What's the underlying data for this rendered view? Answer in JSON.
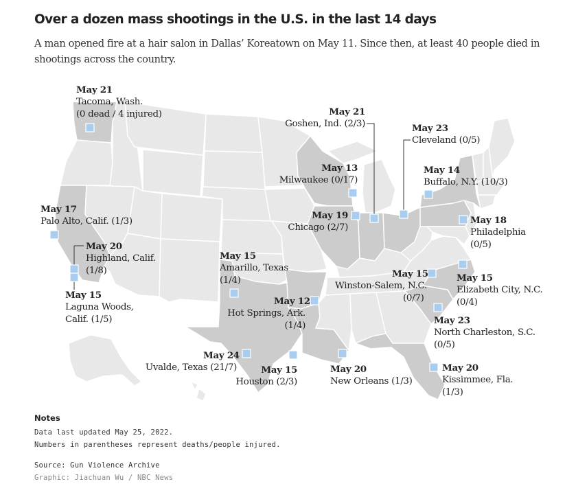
{
  "title": "Over a dozen mass shootings in the U.S. in the last 14 days",
  "subtitle": "A man opened fire at a hair salon in Dallas’ Koreatown on May 11. Since then, at least 40 people died in shootings across the country.",
  "colors": {
    "land_default": "#e8e8e8",
    "land_affected": "#cccccc",
    "state_border": "#ffffff",
    "marker": "#a9cdee",
    "marker_border": "#ffffff",
    "leader": "#333333"
  },
  "affected_states": [
    "WA",
    "CA",
    "TX",
    "AR",
    "LA",
    "FL",
    "SC",
    "NC",
    "PA",
    "NY",
    "OH",
    "IN",
    "IL",
    "WI"
  ],
  "shootings": [
    {
      "id": "tacoma",
      "date": "May 21",
      "place": "Tacoma, Wash.",
      "counts": "(0 dead / 4 injured)",
      "lat": 47.25,
      "lon": -122.44
    },
    {
      "id": "goshen",
      "date": "May 21",
      "place": "Goshen, Ind. (2/3)",
      "counts": "",
      "lat": 41.58,
      "lon": -85.83
    },
    {
      "id": "cleveland",
      "date": "May 23",
      "place": "Cleveland (0/5)",
      "counts": "",
      "lat": 41.5,
      "lon": -81.69
    },
    {
      "id": "milwaukee",
      "date": "May 13",
      "place": "Milwaukee (0/17)",
      "counts": "",
      "lat": 43.04,
      "lon": -87.91
    },
    {
      "id": "buffalo",
      "date": "May 14",
      "place": "Buffalo, N.Y. (10/3)",
      "counts": "",
      "lat": 42.89,
      "lon": -78.88
    },
    {
      "id": "palo-alto",
      "date": "May 17",
      "place": "Palo Alto, Calif. (1/3)",
      "counts": "",
      "lat": 37.44,
      "lon": -122.14
    },
    {
      "id": "chicago",
      "date": "May 19",
      "place": "Chicago (2/7)",
      "counts": "",
      "lat": 41.88,
      "lon": -87.63
    },
    {
      "id": "philadelphia",
      "date": "May 18",
      "place": "Philadelphia",
      "counts": "(0/5)",
      "lat": 39.95,
      "lon": -75.17
    },
    {
      "id": "highland",
      "date": "May 20",
      "place": "Highland, Calif.",
      "counts": "(1/8)",
      "lat": 34.13,
      "lon": -117.21
    },
    {
      "id": "laguna-woods",
      "date": "May 15",
      "place": "Laguna Woods,",
      "counts": "Calif. (1/5)",
      "lat": 33.61,
      "lon": -117.73
    },
    {
      "id": "amarillo",
      "date": "May 15",
      "place": "Amarillo, Texas",
      "counts": "(1/4)",
      "lat": 35.22,
      "lon": -101.83
    },
    {
      "id": "winston-salem",
      "date": "May 15",
      "place": "Winston-Salem, N.C.",
      "counts": "(0/7)",
      "lat": 36.1,
      "lon": -80.24
    },
    {
      "id": "elizabeth-city",
      "date": "May 15",
      "place": "Elizabeth City, N.C.",
      "counts": "(0/4)",
      "lat": 36.29,
      "lon": -76.25
    },
    {
      "id": "hot-springs",
      "date": "May 12",
      "place": "Hot Springs, Ark.",
      "counts": "(1/4)",
      "lat": 34.5,
      "lon": -93.05
    },
    {
      "id": "north-charleston",
      "date": "May 23",
      "place": "North Charleston, S.C.",
      "counts": "(0/5)",
      "lat": 32.85,
      "lon": -79.97
    },
    {
      "id": "uvalde",
      "date": "May 24",
      "place": "Uvalde, Texas (21/7)",
      "counts": "",
      "lat": 29.21,
      "lon": -99.79
    },
    {
      "id": "houston",
      "date": "May 15",
      "place": "Houston (2/3)",
      "counts": "",
      "lat": 29.76,
      "lon": -95.37
    },
    {
      "id": "new-orleans",
      "date": "May 20",
      "place": "New Orleans (1/3)",
      "counts": "",
      "lat": 29.95,
      "lon": -90.07
    },
    {
      "id": "kissimmee",
      "date": "May 20",
      "place": "Kissimmee, Fla.",
      "counts": "(1/3)",
      "lat": 28.29,
      "lon": -81.41
    }
  ],
  "notes": {
    "heading": "Notes",
    "line1": "Data last updated May 25, 2022.",
    "line2": "Numbers in parentheses represent deaths/people injured.",
    "source": "Source: Gun Violence Archive",
    "credit": "Graphic: Jiachuan Wu / NBC News"
  }
}
